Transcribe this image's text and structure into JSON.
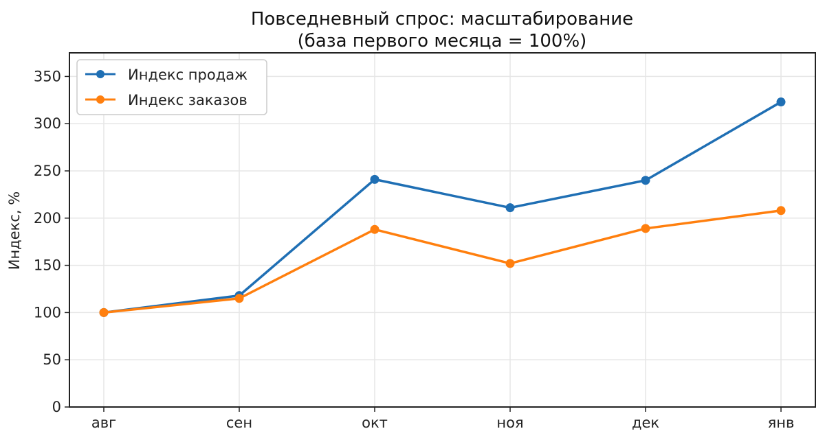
{
  "chart_data": {
    "type": "line",
    "title_line1": "Повседневный спрос: масштабирование",
    "title_line2": "(база первого месяца = 100%)",
    "xlabel": "",
    "ylabel": "Индекс, %",
    "categories": [
      "авг",
      "сен",
      "окт",
      "ноя",
      "дек",
      "янв"
    ],
    "series": [
      {
        "name": "Индекс продаж",
        "color": "#1f6fb4",
        "values": [
          100,
          118,
          241,
          211,
          240,
          323
        ]
      },
      {
        "name": "Индекс заказов",
        "color": "#ff7f0e",
        "values": [
          100,
          115,
          188,
          152,
          189,
          208
        ]
      }
    ],
    "ylim": [
      0,
      375
    ],
    "yticks": [
      0,
      50,
      100,
      150,
      200,
      250,
      300,
      350
    ],
    "grid": true,
    "legend_position": "top-left"
  }
}
